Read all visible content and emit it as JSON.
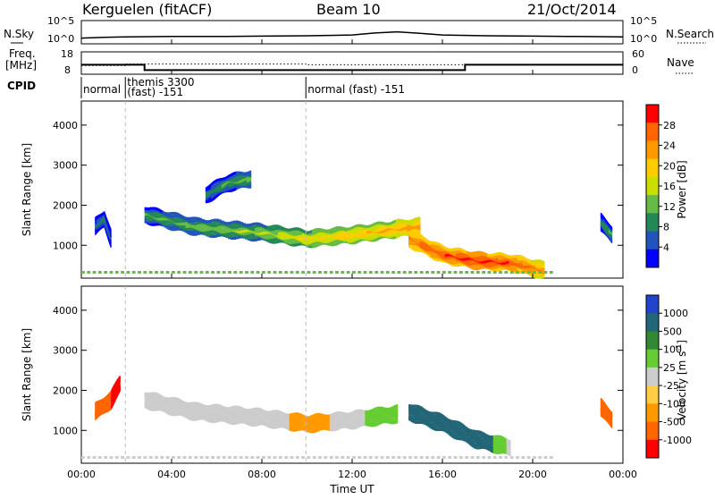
{
  "header": {
    "station": "Kerguelen (fitACF)",
    "beam": "Beam 10",
    "date": "21/Oct/2014"
  },
  "noise_panel": {
    "left_label": "N.Sky",
    "right_label": "N.Search",
    "left_ticks": [
      "10^5",
      "10^0"
    ],
    "right_ticks": [
      "10^5",
      "10^0"
    ]
  },
  "freq_panel": {
    "left_label_1": "Freq.",
    "left_label_2": "[MHz]",
    "right_label": "Nave",
    "left_ticks": [
      "18",
      "8"
    ],
    "right_ticks": [
      "60",
      "0"
    ]
  },
  "cpid_panel": {
    "label": "CPID",
    "segments": [
      {
        "line1": "normal",
        "line2": "",
        "start_hour": 0.0
      },
      {
        "line1": "themis 3300",
        "line2": "(fast) -151",
        "start_hour": 1.95
      },
      {
        "line1": "normal (fast) -151",
        "line2": "",
        "start_hour": 9.95
      }
    ]
  },
  "power_panel": {
    "ylabel": "Slant Range [km]",
    "colorbar_label": "Power [dB]",
    "colorbar_ticks": [
      "28",
      "24",
      "20",
      "16",
      "12",
      "8",
      "4"
    ],
    "colorbar_colors": [
      "#ff0000",
      "#ff6600",
      "#ff9900",
      "#ffcc00",
      "#ccdd00",
      "#66bb44",
      "#228855",
      "#2255bb",
      "#0000ff"
    ]
  },
  "velocity_panel": {
    "ylabel": "Slant Range [km]",
    "colorbar_label_main": "Velocity [m s",
    "colorbar_label_sup": "-1",
    "colorbar_label_end": "]",
    "colorbar_ticks": [
      "1000",
      "500",
      "100",
      "25",
      "-25",
      "-100",
      "-500",
      "-1000"
    ],
    "colorbar_colors": [
      "#2244cc",
      "#226677",
      "#338833",
      "#66cc33",
      "#cccccc",
      "#ffcc44",
      "#ff9900",
      "#ff6600",
      "#ff0000"
    ]
  },
  "x_axis": {
    "title": "Time UT",
    "tick_labels": [
      "00:00",
      "04:00",
      "08:00",
      "12:00",
      "16:00",
      "20:00",
      "00:00"
    ]
  },
  "y_axis": {
    "tick_labels": [
      "1000",
      "2000",
      "3000",
      "4000"
    ]
  },
  "chart_data": [
    {
      "type": "line",
      "title": "N.Sky",
      "x_unit": "hour UT",
      "x": [
        0,
        1,
        2,
        4,
        6,
        8,
        10,
        12,
        13,
        14,
        15,
        16,
        18,
        20,
        22,
        24
      ],
      "y_log10": [
        1.0,
        1.2,
        1.3,
        1.4,
        1.4,
        1.5,
        1.6,
        1.8,
        2.3,
        2.6,
        2.2,
        1.8,
        1.6,
        1.5,
        1.4,
        1.3
      ],
      "ylim_log10": [
        0,
        5
      ]
    },
    {
      "type": "line",
      "title": "Freq. [MHz]",
      "x": [
        0.0,
        2.8,
        2.8,
        17.0,
        17.0,
        24.0
      ],
      "y": [
        12.0,
        12.0,
        9.5,
        9.5,
        12.0,
        12.0
      ],
      "ylim": [
        8,
        18
      ]
    },
    {
      "type": "line",
      "title": "Nave",
      "style": "dotted",
      "x": [
        0.0,
        1.95,
        1.95,
        9.95,
        9.95,
        24.0
      ],
      "y": [
        22,
        22,
        26,
        26,
        24,
        24
      ],
      "ylim": [
        0,
        60
      ]
    },
    {
      "type": "heatmap",
      "title": "Power [dB]",
      "x_unit": "hour UT",
      "y_unit": "km",
      "xlim": [
        0,
        24
      ],
      "ylim": [
        180,
        4600
      ],
      "features": [
        {
          "name": "main band",
          "x": [
            2.8,
            5.0,
            8.0,
            10.0,
            12.0,
            14.0,
            15.0
          ],
          "y": [
            1800,
            1500,
            1350,
            1200,
            1300,
            1450,
            1500
          ],
          "power": [
            10,
            12,
            14,
            18,
            20,
            22,
            24
          ]
        },
        {
          "name": "enhancement",
          "x": [
            14.5,
            16.0,
            17.5,
            19.0,
            20.5
          ],
          "y": [
            1200,
            800,
            650,
            600,
            400
          ],
          "power": [
            26,
            28,
            30,
            28,
            24
          ]
        },
        {
          "name": "echo patch 1",
          "x": [
            0.6,
            1.0,
            1.3
          ],
          "y": [
            1500,
            1700,
            1200
          ],
          "power": [
            6,
            8,
            6
          ]
        },
        {
          "name": "echo patch 2",
          "x": [
            5.5,
            6.5,
            7.5
          ],
          "y": [
            2300,
            2600,
            2700
          ],
          "power": [
            8,
            10,
            12
          ]
        },
        {
          "name": "echo patch 3",
          "x": [
            23.0,
            23.5
          ],
          "y": [
            1600,
            1300
          ],
          "power": [
            8,
            10
          ]
        }
      ]
    },
    {
      "type": "heatmap",
      "title": "Velocity [m s-1]",
      "x_unit": "hour UT",
      "y_unit": "km",
      "xlim": [
        0,
        24
      ],
      "ylim": [
        180,
        4600
      ],
      "features": [
        {
          "name": "main band",
          "x": [
            2.8,
            5.0,
            8.0,
            10.0,
            12.0,
            14.0
          ],
          "y": [
            1800,
            1500,
            1350,
            1200,
            1300,
            1450
          ],
          "velocity": [
            0,
            0,
            10,
            -50,
            0,
            100
          ]
        },
        {
          "name": "enhancement",
          "x": [
            14.5,
            16.0,
            17.5,
            19.0
          ],
          "y": [
            1500,
            1200,
            800,
            600
          ],
          "velocity": [
            300,
            500,
            200,
            0
          ]
        },
        {
          "name": "early echoes",
          "x": [
            0.6,
            1.3,
            1.7
          ],
          "y": [
            1500,
            1800,
            2200
          ],
          "velocity": [
            -300,
            -500,
            -800
          ]
        },
        {
          "name": "late echoes",
          "x": [
            23.0,
            23.5
          ],
          "y": [
            1600,
            1300
          ],
          "velocity": [
            -200,
            -100
          ]
        }
      ]
    }
  ]
}
